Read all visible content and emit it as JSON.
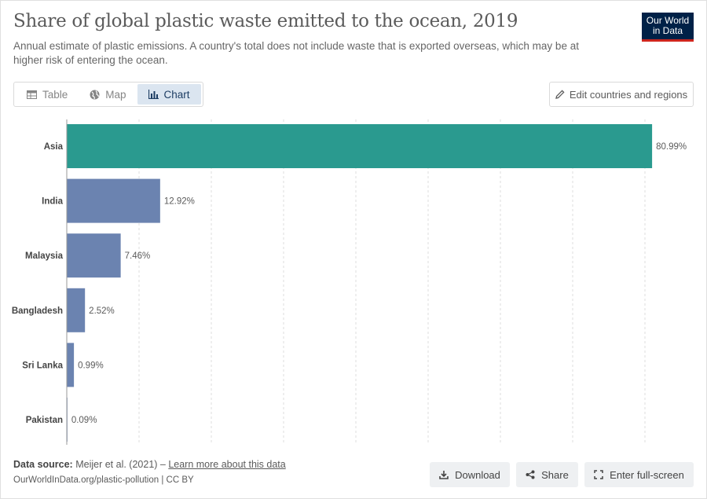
{
  "header": {
    "title": "Share of global plastic waste emitted to the ocean, 2019",
    "subtitle": "Annual estimate of plastic emissions. A country's total does not include waste that is exported overseas, which may be at higher risk of entering the ocean.",
    "logo_line1": "Our World",
    "logo_line2": "in Data"
  },
  "tabs": [
    {
      "label": "Table",
      "icon": "table-icon"
    },
    {
      "label": "Map",
      "icon": "globe-icon"
    },
    {
      "label": "Chart",
      "icon": "chart-icon",
      "active": true
    }
  ],
  "edit_button": {
    "label": "Edit countries and regions",
    "icon": "pencil-icon"
  },
  "colors": {
    "asia": "#2a9a8f",
    "country": "#6b83b0",
    "grid": "#dddddd",
    "axis": "#999999"
  },
  "chart_data": {
    "type": "bar",
    "orientation": "horizontal",
    "title": "Share of global plastic waste emitted to the ocean, 2019",
    "categories": [
      "Asia",
      "India",
      "Malaysia",
      "Bangladesh",
      "Sri Lanka",
      "Pakistan"
    ],
    "values": [
      80.99,
      12.92,
      7.46,
      2.52,
      0.99,
      0.09
    ],
    "labels": [
      "80.99%",
      "12.92%",
      "7.46%",
      "2.52%",
      "0.99%",
      "0.09%"
    ],
    "unit": "%",
    "xlim": [
      0,
      80
    ],
    "gridlines": [
      0,
      10,
      20,
      30,
      40,
      50,
      60,
      70,
      80
    ],
    "grid": true
  },
  "footer": {
    "source_label": "Data source:",
    "source_text": "Meijer et al. (2021) – ",
    "source_link": "Learn more about this data",
    "url": "OurWorldInData.org/plastic-pollution | CC BY",
    "download_label": "Download",
    "share_label": "Share",
    "fullscreen_label": "Enter full-screen"
  }
}
